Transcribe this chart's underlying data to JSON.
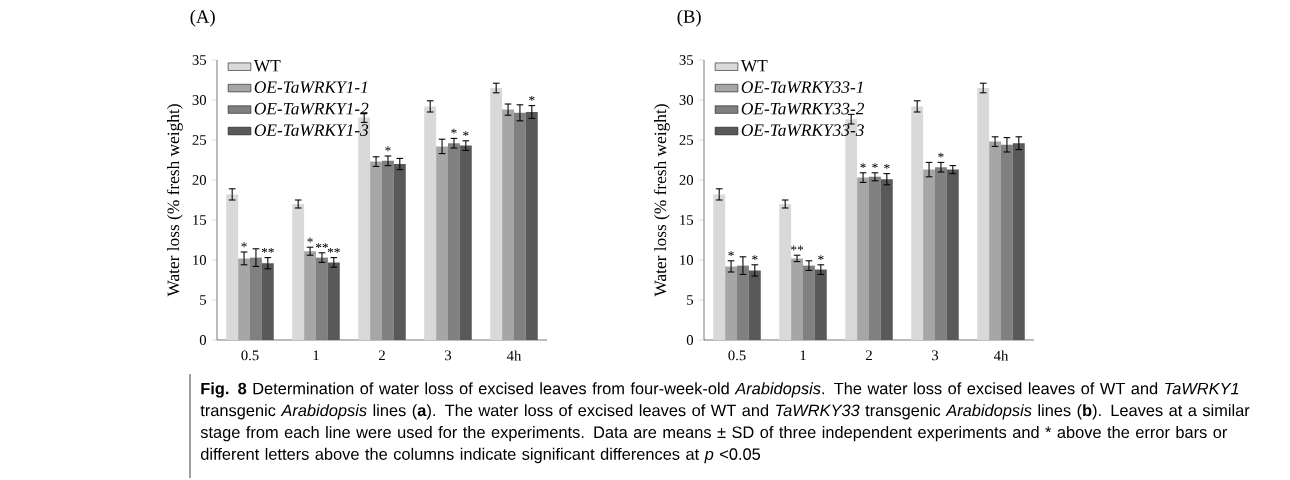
{
  "chart_data": [
    {
      "type": "bar",
      "title": "(A)",
      "ylabel": "Water loss (% fresh weight)",
      "categories": [
        "0.5",
        "1",
        "2",
        "3",
        "4h"
      ],
      "ylim": [
        0,
        35
      ],
      "yticks": [
        0,
        5,
        10,
        15,
        20,
        25,
        30,
        35
      ],
      "legend": "top left",
      "grid": false,
      "series": [
        {
          "name": "WT",
          "color": "#d9d9d9",
          "values": [
            18.2,
            17.0,
            27.8,
            29.2,
            31.5
          ],
          "errors": [
            0.7,
            0.5,
            0.6,
            0.7,
            0.6
          ]
        },
        {
          "name": "OE-TaWRKY1-1",
          "color": "#a6a6a6",
          "values": [
            10.2,
            11.1,
            22.3,
            24.2,
            28.8
          ],
          "errors": [
            0.8,
            0.5,
            0.6,
            0.9,
            0.7
          ],
          "value_labels": [
            "*",
            "*",
            null,
            null,
            null
          ]
        },
        {
          "name": "OE-TaWRKY1-2",
          "color": "#808080",
          "values": [
            10.3,
            10.3,
            22.4,
            24.6,
            28.4
          ],
          "errors": [
            1.1,
            0.6,
            0.6,
            0.6,
            1.0
          ],
          "value_labels": [
            null,
            "**",
            "*",
            "*",
            null
          ]
        },
        {
          "name": "OE-TaWRKY1-3",
          "color": "#595959",
          "values": [
            9.6,
            9.7,
            22.0,
            24.3,
            28.5
          ],
          "errors": [
            0.7,
            0.6,
            0.7,
            0.6,
            0.8
          ],
          "value_labels": [
            "**",
            "**",
            null,
            "*",
            "*"
          ]
        }
      ],
      "annotations": [
        "**Fig. 8** Determination of water loss of excised leaves from four-week-old *Arabidopsis*. The water loss of excised leaves of WT and *TaWRKY1* transgenic *Arabidopsis* lines (**a**). The water loss of excised leaves of WT and *TaWRKY33* transgenic *Arabidopsis* lines (**b**). Leaves at a similar stage from each line were used for the experiments. Data are means ± SD of three independent experiments and * above the error bars or different letters above the columns indicate significant differences at *p* <0.05"
      ]
    },
    {
      "type": "bar",
      "title": "(B)",
      "ylabel": "Water loss (% fresh weight)",
      "categories": [
        "0.5",
        "1",
        "2",
        "3",
        "4h"
      ],
      "ylim": [
        0,
        35
      ],
      "yticks": [
        0,
        5,
        10,
        15,
        20,
        25,
        30,
        35
      ],
      "legend": "top left",
      "grid": false,
      "series": [
        {
          "name": "WT",
          "color": "#d9d9d9",
          "values": [
            18.2,
            17.0,
            27.6,
            29.2,
            31.5
          ],
          "errors": [
            0.7,
            0.5,
            0.6,
            0.7,
            0.6
          ]
        },
        {
          "name": "OE-TaWRKY33-1",
          "color": "#a6a6a6",
          "values": [
            9.2,
            10.2,
            20.3,
            21.3,
            24.8
          ],
          "errors": [
            0.7,
            0.4,
            0.6,
            0.9,
            0.6
          ],
          "value_labels": [
            "*",
            "**",
            "*",
            null,
            null
          ]
        },
        {
          "name": "OE-TaWRKY33-2",
          "color": "#808080",
          "values": [
            9.3,
            9.3,
            20.4,
            21.6,
            24.4
          ],
          "errors": [
            1.1,
            0.6,
            0.5,
            0.6,
            0.9
          ],
          "value_labels": [
            null,
            null,
            "*",
            "*",
            null
          ]
        },
        {
          "name": "OE-TaWRKY33-3",
          "color": "#595959",
          "values": [
            8.7,
            8.8,
            20.1,
            21.3,
            24.6
          ],
          "errors": [
            0.7,
            0.6,
            0.7,
            0.5,
            0.8
          ],
          "value_labels": [
            "*",
            "*",
            "*",
            null,
            null
          ]
        }
      ]
    }
  ]
}
